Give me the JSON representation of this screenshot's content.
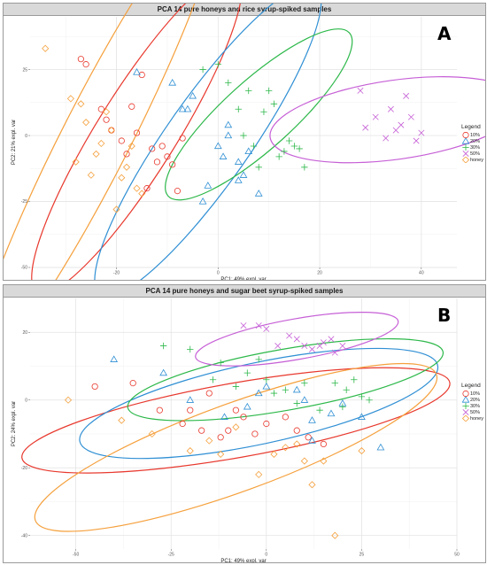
{
  "panels": [
    {
      "letter": "A",
      "title": "PCA 14 pure honeys and rice syrup-spiked samples",
      "xlabel": "PC1: 49% expl. var",
      "ylabel": "PC2: 21% expl. var",
      "x_ticks": [
        -20,
        0,
        20,
        40
      ],
      "y_ticks": [
        25,
        0,
        -25,
        -50
      ],
      "legend_title": "Legend",
      "legend_items": [
        "10%",
        "20%",
        "30%",
        "50%",
        "honey"
      ]
    },
    {
      "letter": "B",
      "title": "PCA 14 pure honeys and sugar beet syrup-spiked samples",
      "xlabel": "PC1: 49% expl. var",
      "ylabel": "PC2: 24% expl. var",
      "x_ticks": [
        -50,
        -25,
        0,
        25,
        50
      ],
      "y_ticks": [
        20,
        0,
        -20,
        -40
      ],
      "legend_title": "Legend",
      "legend_items": [
        "10%",
        "20%",
        "30%",
        "50%",
        "honey"
      ]
    }
  ],
  "colors": {
    "10%": "#e8392e",
    "20%": "#2f8fd4",
    "30%": "#2db84a",
    "50%": "#c65fd6",
    "honey": "#f5a03c"
  },
  "chart_data": [
    {
      "type": "scatter",
      "title": "PCA 14 pure honeys and rice syrup-spiked samples",
      "xlabel": "PC1: 49% expl. var",
      "ylabel": "PC2: 21% expl. var",
      "xlim": [
        -37,
        47
      ],
      "ylim": [
        -50,
        45
      ],
      "grid": true,
      "legend_position": "right",
      "series": [
        {
          "name": "10%",
          "marker": "circle",
          "x": [
            -27,
            -26,
            -23,
            -22,
            -21,
            -19,
            -18,
            -17,
            -16,
            -15,
            -14,
            -13,
            -12,
            -11,
            -10,
            -9,
            -8,
            -7
          ],
          "y": [
            29,
            27,
            10,
            6,
            2,
            -2,
            -7,
            11,
            1,
            23,
            -20,
            -5,
            -10,
            -4,
            -8,
            -11,
            -21,
            -1
          ],
          "ellipse": {
            "cx": -16,
            "cy": 1,
            "angle": -58,
            "rx": 37,
            "ry": 15
          }
        },
        {
          "name": "20%",
          "marker": "triangle",
          "x": [
            -16,
            -9,
            -7,
            -6,
            -5,
            -3,
            -2,
            0,
            1,
            2,
            2,
            4,
            4,
            5,
            6,
            8
          ],
          "y": [
            24,
            20,
            10,
            10,
            15,
            -25,
            -19,
            -4,
            -8,
            0,
            4,
            -10,
            -17,
            -15,
            -6,
            -22
          ],
          "ellipse": {
            "cx": -2,
            "cy": -2,
            "angle": -55,
            "rx": 37,
            "ry": 16
          }
        },
        {
          "name": "30%",
          "marker": "plus",
          "x": [
            -3,
            0,
            2,
            4,
            5,
            6,
            7,
            8,
            9,
            10,
            11,
            12,
            13,
            14,
            15,
            16,
            17
          ],
          "y": [
            25,
            27,
            20,
            10,
            0,
            17,
            -4,
            -12,
            9,
            17,
            12,
            -8,
            -6,
            -2,
            -4,
            -5,
            -12
          ],
          "ellipse": {
            "cx": 8,
            "cy": 8,
            "angle": -42,
            "rx": 24,
            "ry": 13
          }
        },
        {
          "name": "50%",
          "marker": "cross",
          "x": [
            28,
            29,
            31,
            33,
            34,
            35,
            36,
            37,
            38,
            39,
            40
          ],
          "y": [
            17,
            3,
            7,
            -1,
            10,
            2,
            4,
            15,
            7,
            -2,
            1
          ],
          "ellipse": {
            "cx": 35,
            "cy": 6,
            "angle": -8,
            "rx": 25,
            "ry": 15
          }
        },
        {
          "name": "honey",
          "marker": "diamond",
          "x": [
            -34,
            -29,
            -28,
            -27,
            -26,
            -25,
            -24,
            -23,
            -22,
            -21,
            -20,
            -19,
            -18,
            -17,
            -16,
            -15
          ],
          "y": [
            33,
            14,
            -10,
            12,
            5,
            -15,
            -7,
            -3,
            9,
            2,
            -28,
            -16,
            -12,
            -4,
            -20,
            -22
          ],
          "ellipse": {
            "cx": -24,
            "cy": -1,
            "angle": -63,
            "rx": 51,
            "ry": 13
          }
        }
      ]
    },
    {
      "type": "scatter",
      "title": "PCA 14 pure honeys and sugar beet syrup-spiked samples",
      "xlabel": "PC1: 49% expl. var",
      "ylabel": "PC2: 24% expl. var",
      "xlim": [
        -62,
        50
      ],
      "ylim": [
        -44,
        30
      ],
      "grid": true,
      "legend_position": "right",
      "series": [
        {
          "name": "10%",
          "marker": "circle",
          "x": [
            -45,
            -35,
            -28,
            -22,
            -20,
            -17,
            -15,
            -12,
            -10,
            -8,
            -6,
            -3,
            0,
            5,
            8,
            11,
            15
          ],
          "y": [
            4,
            5,
            -3,
            -7,
            -3,
            -9,
            2,
            -11,
            -9,
            -3,
            -5,
            -10,
            -7,
            -5,
            -9,
            -11,
            -13
          ],
          "ellipse": {
            "cx": -8,
            "cy": -6,
            "angle": -10,
            "rx": 57,
            "ry": 11
          }
        },
        {
          "name": "20%",
          "marker": "triangle",
          "x": [
            -40,
            -27,
            -20,
            -11,
            -2,
            -5,
            0,
            8,
            10,
            12,
            12,
            17,
            20,
            25,
            30
          ],
          "y": [
            12,
            8,
            0,
            -5,
            2,
            -2,
            4,
            3,
            0,
            -6,
            -12,
            -4,
            -1,
            -5,
            -14
          ],
          "ellipse": {
            "cx": -2,
            "cy": -1,
            "angle": -12,
            "rx": 48,
            "ry": 12
          }
        },
        {
          "name": "30%",
          "marker": "plus",
          "x": [
            -27,
            -20,
            -14,
            -12,
            -8,
            -5,
            -2,
            0,
            2,
            5,
            8,
            10,
            14,
            18,
            20,
            21,
            23,
            25,
            27
          ],
          "y": [
            16,
            15,
            6,
            11,
            4,
            8,
            12,
            6,
            2,
            3,
            -1,
            5,
            -3,
            5,
            -2,
            3,
            6,
            1,
            0
          ],
          "ellipse": {
            "cx": 5,
            "cy": 6,
            "angle": -10,
            "rx": 42,
            "ry": 9
          }
        },
        {
          "name": "50%",
          "marker": "cross",
          "x": [
            -6,
            -2,
            0,
            3,
            6,
            8,
            10,
            12,
            14,
            15,
            17,
            18,
            20
          ],
          "y": [
            22,
            22,
            21,
            16,
            19,
            18,
            16,
            15,
            16,
            17,
            18,
            14,
            16
          ],
          "ellipse": {
            "cx": 8,
            "cy": 18,
            "angle": -10,
            "rx": 27,
            "ry": 6
          }
        },
        {
          "name": "honey",
          "marker": "diamond",
          "x": [
            -52,
            -38,
            -30,
            -20,
            -15,
            -12,
            -8,
            -2,
            2,
            5,
            8,
            10,
            12,
            15,
            18,
            25
          ],
          "y": [
            0,
            -6,
            -10,
            -15,
            -12,
            -16,
            -8,
            -22,
            -16,
            -14,
            -13,
            -18,
            -25,
            -18,
            -40,
            -15
          ],
          "ellipse": {
            "cx": -8,
            "cy": -14,
            "angle": -20,
            "rx": 56,
            "ry": 13
          }
        }
      ]
    }
  ]
}
